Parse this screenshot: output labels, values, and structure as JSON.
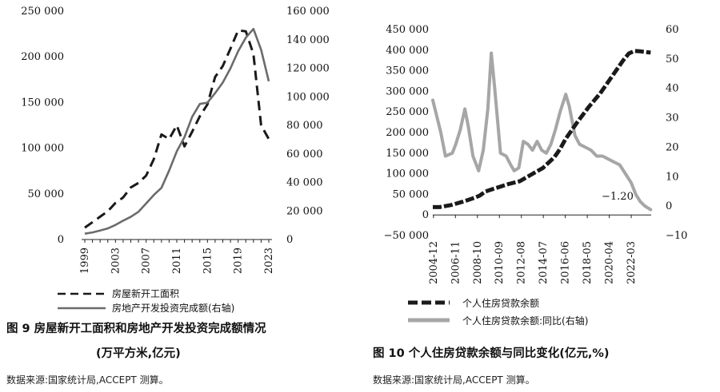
{
  "chart_data": [
    {
      "type": "line",
      "figure_caption_line1": "图 9 房屋新开工面积和房地产开发投资完成额情况",
      "figure_caption_line2": "(万平方米,亿元)",
      "source": "数据来源:国家统计局,ACCEPT 测算。",
      "x": [
        1999,
        2000,
        2001,
        2002,
        2003,
        2004,
        2005,
        2006,
        2007,
        2008,
        2009,
        2010,
        2011,
        2012,
        2013,
        2014,
        2015,
        2016,
        2017,
        2018,
        2019,
        2020,
        2021,
        2022,
        2023
      ],
      "x_ticks": [
        "1999",
        "2003",
        "2007",
        "2011",
        "2015",
        "2019",
        "2023"
      ],
      "ylim_left": [
        0,
        250000
      ],
      "y_ticks_left": [
        "0",
        "50 000",
        "100 000",
        "150 000",
        "200 000",
        "250 000"
      ],
      "ylim_right": [
        0,
        160000
      ],
      "y_ticks_right": [
        "0",
        "20 000",
        "40 000",
        "60 000",
        "80 000",
        "100 000",
        "120 000",
        "140 000",
        "160 000"
      ],
      "series": [
        {
          "name": "房屋新开工面积",
          "axis": "left",
          "style": "dashed",
          "color": "#1a1a1a",
          "values": [
            13000,
            19000,
            25000,
            31000,
            40000,
            46000,
            57000,
            62000,
            70000,
            88000,
            115000,
            110000,
            125000,
            102000,
            118000,
            135000,
            148000,
            178000,
            190000,
            209000,
            229000,
            228000,
            203000,
            125000,
            110000
          ]
        },
        {
          "name": "房地产开发投资完成额(右轴)",
          "axis": "right",
          "style": "solid",
          "color": "#6b6b6b",
          "values": [
            4100,
            5000,
            6300,
            7800,
            10200,
            13200,
            15900,
            19400,
            25300,
            31200,
            36200,
            48300,
            61800,
            71800,
            86000,
            95000,
            95900,
            102600,
            110000,
            120000,
            132000,
            141400,
            147600,
            133000,
            110900
          ]
        }
      ]
    },
    {
      "type": "line",
      "figure_caption": "图 10 个人住房贷款余额与同比变化(亿元,%)",
      "source": "数据来源:国家统计局,ACCEPT 测算。",
      "x_ticks": [
        "2004-12",
        "2006-11",
        "2008-10",
        "2010-09",
        "2012-08",
        "2014-07",
        "2016-06",
        "2018-05",
        "2020-04",
        "2022-03"
      ],
      "x_range": [
        "2004-12",
        "2023-12"
      ],
      "ylim_left": [
        -50000,
        450000
      ],
      "y_ticks_left": [
        "−50 000",
        "0",
        "50 000",
        "100 000",
        "150 000",
        "200 000",
        "250 000",
        "300 000",
        "350 000",
        "400 000",
        "450 000"
      ],
      "ylim_right": [
        -10,
        60
      ],
      "y_ticks_right": [
        "−10",
        "0",
        "10",
        "20",
        "30",
        "40",
        "50",
        "60"
      ],
      "annotation": "−1.20",
      "series": [
        {
          "name": "个人住房贷款余额",
          "axis": "left",
          "style": "thick-dashed",
          "color": "#1a1a1a",
          "x": [
            2004.9,
            2005.5,
            2006.5,
            2007.5,
            2008.5,
            2009.0,
            2009.5,
            2010.5,
            2011.5,
            2012.5,
            2013.5,
            2014.5,
            2015.5,
            2016.0,
            2016.5,
            2017.0,
            2017.5,
            2018.5,
            2019.5,
            2020.5,
            2021.5,
            2022.0,
            2022.5,
            2023.0,
            2023.9
          ],
          "values": [
            19000,
            19000,
            24000,
            32000,
            41000,
            47000,
            57000,
            66000,
            75000,
            82000,
            98000,
            114000,
            140000,
            160000,
            185000,
            205000,
            225000,
            262000,
            295000,
            335000,
            375000,
            392000,
            398000,
            397000,
            394000
          ]
        },
        {
          "name": "个人住房贷款余额:同比(右轴)",
          "axis": "right",
          "style": "solid",
          "color": "#a6a6a6",
          "x": [
            2004.9,
            2005.6,
            2006.0,
            2006.6,
            2006.9,
            2007.3,
            2007.7,
            2008.0,
            2008.4,
            2008.9,
            2009.3,
            2009.7,
            2010.0,
            2010.3,
            2010.8,
            2011.3,
            2011.7,
            2012.0,
            2012.4,
            2012.8,
            2013.2,
            2013.6,
            2014.0,
            2014.4,
            2014.8,
            2015.2,
            2015.6,
            2016.0,
            2016.5,
            2016.8,
            2017.3,
            2017.7,
            2018.2,
            2018.7,
            2019.2,
            2019.7,
            2020.2,
            2020.7,
            2021.2,
            2021.7,
            2022.2,
            2022.6,
            2023.0,
            2023.4,
            2023.9
          ],
          "values": [
            36,
            25,
            17,
            18,
            21,
            26,
            33,
            27,
            17,
            12,
            19,
            33,
            52,
            40,
            18,
            17,
            14,
            12,
            13,
            22,
            21,
            19,
            22,
            19,
            18,
            21,
            26,
            32,
            38,
            34,
            24,
            21,
            20,
            19,
            17,
            17,
            16,
            15,
            14,
            11,
            8,
            4,
            1.5,
            0,
            -1.2
          ]
        }
      ]
    }
  ]
}
